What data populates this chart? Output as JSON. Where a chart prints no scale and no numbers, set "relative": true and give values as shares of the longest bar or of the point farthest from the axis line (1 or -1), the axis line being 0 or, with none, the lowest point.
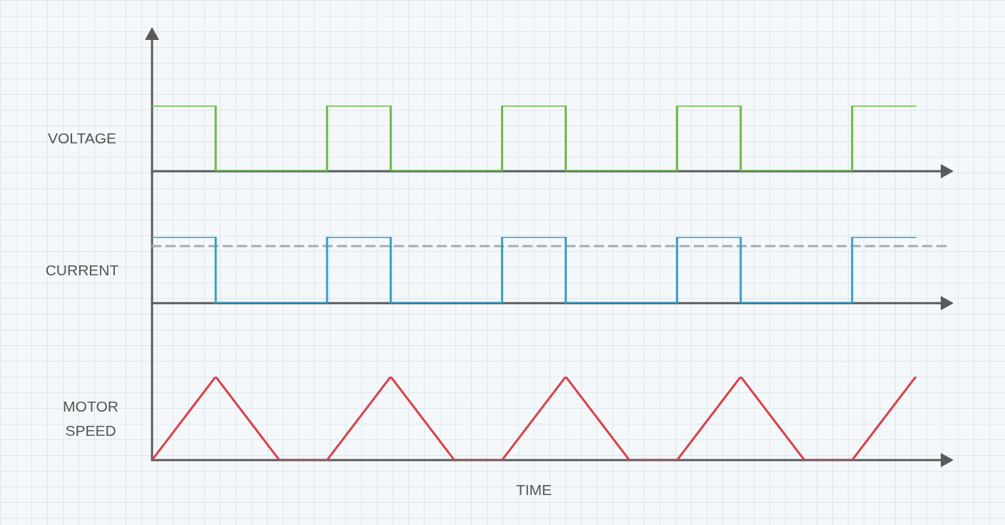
{
  "chart_data": [
    {
      "type": "step",
      "ylabel": "VOLTAGE",
      "relative": true,
      "categories": [
        null,
        null,
        null,
        null,
        null,
        null,
        null,
        null,
        null,
        null,
        null,
        null,
        null,
        null,
        null,
        null,
        null,
        null,
        null,
        null,
        null,
        null,
        null,
        null,
        null,
        null,
        null,
        null,
        null,
        null,
        null,
        null,
        null,
        null,
        null,
        null,
        null,
        null,
        null,
        null,
        null,
        null,
        null,
        null,
        null,
        null,
        null,
        null,
        null
      ],
      "series": [
        {
          "color": "#6ab84a",
          "values": [
            1,
            1,
            1,
            1,
            0,
            0,
            0,
            0,
            0,
            0,
            0,
            1,
            1,
            1,
            1,
            0,
            0,
            0,
            0,
            0,
            0,
            0,
            1,
            1,
            1,
            1,
            0,
            0,
            0,
            0,
            0,
            0,
            0,
            1,
            1,
            1,
            1,
            0,
            0,
            0,
            0,
            0,
            0,
            0,
            1,
            1,
            1,
            1,
            1
          ]
        }
      ]
    },
    {
      "type": "step",
      "ylabel": "CURRENT",
      "relative": true,
      "categories": [
        null,
        null,
        null,
        null,
        null,
        null,
        null,
        null,
        null,
        null,
        null,
        null,
        null,
        null,
        null,
        null,
        null,
        null,
        null,
        null,
        null,
        null,
        null,
        null,
        null,
        null,
        null,
        null,
        null,
        null,
        null,
        null,
        null,
        null,
        null,
        null,
        null,
        null,
        null,
        null,
        null,
        null,
        null,
        null,
        null,
        null,
        null,
        null,
        null
      ],
      "series": [
        {
          "color": "#35a0c4",
          "values": [
            1,
            1,
            1,
            1,
            0,
            0,
            0,
            0,
            0,
            0,
            0,
            1,
            1,
            1,
            1,
            0,
            0,
            0,
            0,
            0,
            0,
            0,
            1,
            1,
            1,
            1,
            0,
            0,
            0,
            0,
            0,
            0,
            0,
            1,
            1,
            1,
            1,
            0,
            0,
            0,
            0,
            0,
            0,
            0,
            1,
            1,
            1,
            1,
            1
          ]
        }
      ],
      "ref_lines": [
        {
          "axis": "y",
          "value": 0.86,
          "color": "#aaaaaa",
          "line_style": "dashed"
        }
      ]
    },
    {
      "type": "line",
      "ylabel": "MOTOR SPEED",
      "xlabel": "TIME",
      "relative": true,
      "categories": [
        null,
        null,
        null,
        null,
        null,
        null,
        null,
        null,
        null,
        null,
        null,
        null,
        null,
        null,
        null,
        null,
        null,
        null,
        null,
        null,
        null,
        null,
        null,
        null,
        null,
        null,
        null,
        null,
        null,
        null,
        null,
        null,
        null,
        null,
        null,
        null,
        null,
        null,
        null,
        null,
        null,
        null,
        null,
        null,
        null,
        null,
        null,
        null,
        null
      ],
      "series": [
        {
          "color": "#d9434a",
          "values": [
            0,
            0.25,
            0.5,
            0.75,
            1,
            0.75,
            0.5,
            0.25,
            0,
            0,
            0,
            0,
            0.25,
            0.5,
            0.75,
            1,
            0.75,
            0.5,
            0.25,
            0,
            0,
            0,
            0,
            0.25,
            0.5,
            0.75,
            1,
            0.75,
            0.5,
            0.25,
            0,
            0,
            0,
            0,
            0.25,
            0.5,
            0.75,
            1,
            0.75,
            0.5,
            0.25,
            0,
            0,
            0,
            0,
            0.25,
            0.5,
            0.75,
            1
          ]
        }
      ]
    }
  ]
}
